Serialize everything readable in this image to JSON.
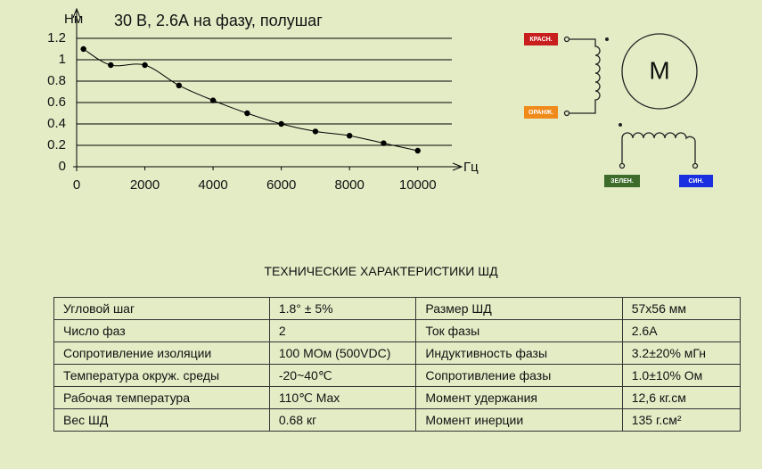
{
  "chart_data": {
    "type": "line",
    "title": "30 В, 2.6А на фазу, полушаг",
    "y_label": "Нм",
    "x_label": "Гц",
    "x": [
      200,
      1000,
      2000,
      3000,
      4000,
      5000,
      6000,
      7000,
      8000,
      9000,
      10000
    ],
    "values": [
      1.1,
      0.95,
      0.95,
      0.76,
      0.62,
      0.5,
      0.4,
      0.33,
      0.29,
      0.22,
      0.15
    ],
    "color": "#000000",
    "xlim": [
      0,
      11000
    ],
    "ylim": [
      0,
      1.2
    ],
    "xticks": [
      0,
      2000,
      4000,
      6000,
      8000,
      10000
    ],
    "yticks": [
      0,
      0.2,
      0.4,
      0.6,
      0.8,
      1,
      1.2
    ],
    "grid": true,
    "smooth": true
  },
  "wiring": {
    "motor": "M",
    "wires": [
      "КРАСН.",
      "ОРАНЖ.",
      "ЗЕЛЕН.",
      "СИН."
    ]
  },
  "table": {
    "title": "ТЕХНИЧЕСКИЕ ХАРАКТЕРИСТИКИ ШД",
    "rows": [
      [
        "Угловой шаг",
        "1.8° ± 5%",
        "Размер ШД",
        "57x56 мм"
      ],
      [
        "Число фаз",
        "2",
        "Ток фазы",
        "2.6A"
      ],
      [
        "Сопротивление изоляции",
        "100 MОм (500VDC)",
        "Индуктивность фазы",
        "3.2±20% мГн"
      ],
      [
        "Температура окруж. среды",
        "-20~40℃",
        "Сопротивление фазы",
        "1.0±10% Ом"
      ],
      [
        "Рабочая температура",
        "110℃ Max",
        "Момент удержания",
        "12,6 кг.см"
      ],
      [
        "Вес ШД",
        "0.68 кг",
        "Момент инерции",
        "135 г.см²"
      ]
    ]
  }
}
